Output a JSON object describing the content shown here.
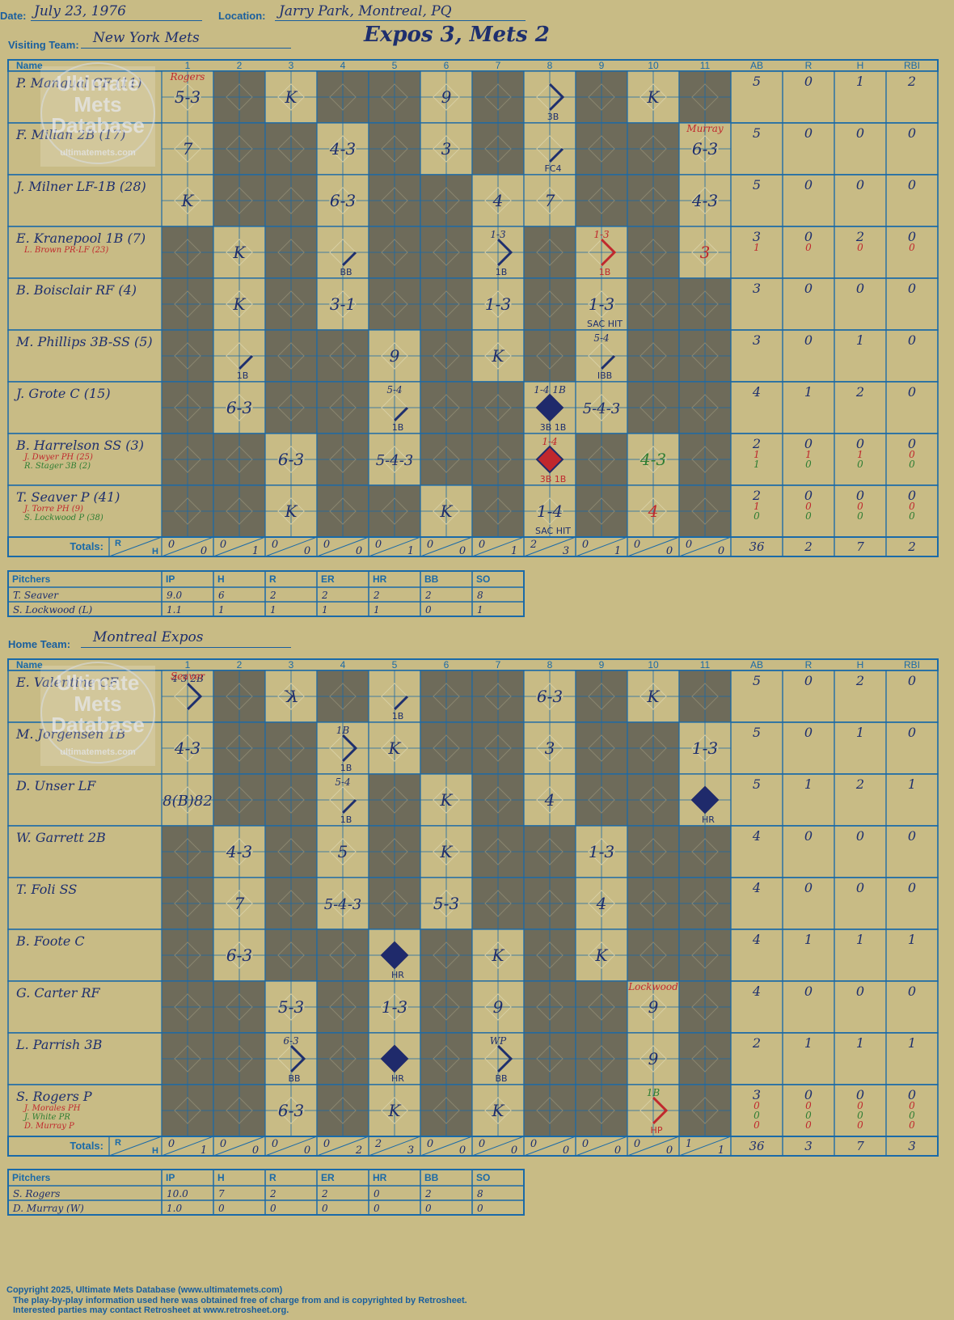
{
  "header": {
    "date_label": "Date:",
    "date": "July 23, 1976",
    "location_label": "Location:",
    "location": "Jarry Park, Montreal, PQ",
    "visiting_label": "Visiting Team:",
    "visiting_team": "New York Mets",
    "home_label": "Home Team:",
    "home_team": "Montreal Expos",
    "title": "Expos 3, Mets 2"
  },
  "watermark": [
    "Ultimate",
    "Mets",
    "Database",
    "ultimatemets.com"
  ],
  "grid_headers": {
    "name": "Name",
    "innings": [
      "1",
      "2",
      "3",
      "4",
      "5",
      "6",
      "7",
      "8",
      "9",
      "10",
      "11"
    ],
    "stats": [
      "AB",
      "R",
      "H",
      "RBI"
    ],
    "totals": "Totals:",
    "r": "R",
    "h": "H"
  },
  "pitch_headers": [
    "Pitchers",
    "IP",
    "H",
    "R",
    "ER",
    "HR",
    "BB",
    "SO"
  ],
  "visitors": {
    "players": [
      {
        "name": "P. Mangual CF (11)",
        "subs": [],
        "stats": [
          [
            "5",
            "0",
            "1",
            "2"
          ]
        ],
        "cells": {
          "1": {
            "t": "5-3",
            "top": "Rogers"
          },
          "3": {
            "t": "K"
          },
          "6": {
            "t": "9"
          },
          "8": {
            "t": "",
            "r": 3,
            "note": "3B"
          },
          "10": {
            "t": "K"
          }
        },
        "dark": [
          2,
          4,
          5,
          7,
          9,
          11
        ]
      },
      {
        "name": "F. Millan 2B (17)",
        "subs": [],
        "stats": [
          [
            "5",
            "0",
            "0",
            "0"
          ]
        ],
        "cells": {
          "1": {
            "t": "7"
          },
          "4": {
            "t": "4-3"
          },
          "6": {
            "t": "3"
          },
          "8": {
            "t": "",
            "r": 1,
            "note": "FC4"
          },
          "11": {
            "t": "6-3",
            "top": "Murray"
          }
        },
        "dark": [
          2,
          3,
          5,
          7,
          9,
          10
        ]
      },
      {
        "name": "J. Milner LF-1B (28)",
        "subs": [],
        "stats": [
          [
            "5",
            "0",
            "0",
            "0"
          ]
        ],
        "cells": {
          "1": {
            "t": "K"
          },
          "4": {
            "t": "6-3"
          },
          "7": {
            "t": "4"
          },
          "8": {
            "t": "7"
          },
          "11": {
            "t": "4-3"
          }
        },
        "dark": [
          2,
          3,
          5,
          6,
          9,
          10
        ]
      },
      {
        "name": "E. Kranepool 1B (7)",
        "subs": [
          {
            "name": "L. Brown PR-LF (23)",
            "color": "#c0282d"
          }
        ],
        "stats": [
          [
            "3",
            "0",
            "2",
            "0"
          ],
          [
            "1",
            "0",
            "0",
            "0"
          ]
        ],
        "cells": {
          "2": {
            "t": "K"
          },
          "4": {
            "t": "",
            "r": 1,
            "note": "BB"
          },
          "7": {
            "t": "",
            "r": 2,
            "note": "1B",
            "top2": "1-3"
          },
          "9": {
            "t": "",
            "r": 2,
            "note": "1B",
            "top2": "1-3",
            "red": true
          },
          "11": {
            "t": "3",
            "red": true
          }
        },
        "dark": [
          1,
          3,
          5,
          6,
          8,
          10
        ]
      },
      {
        "name": "B. Boisclair RF (4)",
        "subs": [],
        "stats": [
          [
            "3",
            "0",
            "0",
            "0"
          ]
        ],
        "cells": {
          "2": {
            "t": "K"
          },
          "4": {
            "t": "3-1"
          },
          "7": {
            "t": "1-3"
          },
          "9": {
            "t": "1-3",
            "note": "SAC HIT"
          }
        },
        "dark": [
          1,
          3,
          5,
          6,
          8,
          10,
          11
        ]
      },
      {
        "name": "M. Phillips 3B-SS (5)",
        "subs": [],
        "stats": [
          [
            "3",
            "0",
            "1",
            "0"
          ]
        ],
        "cells": {
          "2": {
            "t": "",
            "r": 1,
            "note": "1B"
          },
          "5": {
            "t": "9"
          },
          "7": {
            "t": "K"
          },
          "9": {
            "t": "",
            "r": 1,
            "note": "IBB",
            "top2": "5-4"
          }
        },
        "dark": [
          1,
          3,
          4,
          6,
          8,
          10,
          11
        ]
      },
      {
        "name": "J. Grote C (15)",
        "subs": [],
        "stats": [
          [
            "4",
            "1",
            "2",
            "0"
          ]
        ],
        "cells": {
          "2": {
            "t": "6-3"
          },
          "5": {
            "t": "",
            "r": 1,
            "note": "1B",
            "top2": "5-4"
          },
          "8": {
            "t": "",
            "r": 4,
            "note": "3B 1B",
            "top2": "1-4 1B"
          },
          "9": {
            "t": "5-4-3"
          }
        },
        "dark": [
          1,
          3,
          4,
          6,
          7,
          10,
          11
        ]
      },
      {
        "name": "B. Harrelson SS (3)",
        "subs": [
          {
            "name": "J. Dwyer PH (25)",
            "color": "#c0282d"
          },
          {
            "name": "R. Stager 3B (2)",
            "color": "#2e7d32"
          }
        ],
        "stats": [
          [
            "2",
            "0",
            "0",
            "0"
          ],
          [
            "1",
            "1",
            "1",
            "0"
          ],
          [
            "1",
            "0",
            "0",
            "0"
          ]
        ],
        "cells": {
          "3": {
            "t": "6-3"
          },
          "5": {
            "t": "5-4-3"
          },
          "8": {
            "t": "",
            "r": 4,
            "red": true,
            "note": "3B 1B",
            "top2": "1-4"
          },
          "10": {
            "t": "4-3",
            "green": true
          }
        },
        "dark": [
          1,
          2,
          4,
          6,
          7,
          9,
          11
        ]
      },
      {
        "name": "T. Seaver P (41)",
        "subs": [
          {
            "name": "J. Torre PH (9)",
            "color": "#c0282d"
          },
          {
            "name": "S. Lockwood P (38)",
            "color": "#2e7d32"
          }
        ],
        "stats": [
          [
            "2",
            "0",
            "0",
            "0"
          ],
          [
            "1",
            "0",
            "0",
            "0"
          ],
          [
            "0",
            "0",
            "0",
            "0"
          ]
        ],
        "cells": {
          "3": {
            "t": "K"
          },
          "6": {
            "t": "K"
          },
          "8": {
            "t": "1-4",
            "note": "SAC HIT"
          },
          "10": {
            "t": "4",
            "red": true
          }
        },
        "dark": [
          1,
          2,
          4,
          5,
          7,
          9,
          11
        ]
      }
    ],
    "totals": [
      [
        "0",
        "0"
      ],
      [
        "0",
        "1"
      ],
      [
        "0",
        "0"
      ],
      [
        "0",
        "0"
      ],
      [
        "0",
        "1"
      ],
      [
        "0",
        "0"
      ],
      [
        "0",
        "1"
      ],
      [
        "2",
        "3"
      ],
      [
        "0",
        "1"
      ],
      [
        "0",
        "0"
      ],
      [
        "0",
        "0"
      ]
    ],
    "totals_stats": [
      "36",
      "2",
      "7",
      "2"
    ],
    "pitchers": [
      {
        "name": "T. Seaver",
        "v": [
          "9.0",
          "6",
          "2",
          "2",
          "2",
          "2",
          "8"
        ]
      },
      {
        "name": "S. Lockwood (L)",
        "v": [
          "1.1",
          "1",
          "1",
          "1",
          "1",
          "0",
          "1"
        ]
      }
    ]
  },
  "home": {
    "players": [
      {
        "name": "E. Valentine CF",
        "subs": [],
        "stats": [
          [
            "5",
            "0",
            "2",
            "0"
          ]
        ],
        "cells": {
          "1": {
            "t": "",
            "r": 2,
            "top": "Seaver",
            "top2": "4-3 2B"
          },
          "3": {
            "t": "K",
            "rev": true
          },
          "5": {
            "t": "",
            "r": 1,
            "note": "1B"
          },
          "8": {
            "t": "6-3"
          },
          "10": {
            "t": "K"
          }
        },
        "dark": [
          2,
          4,
          6,
          7,
          9,
          11
        ]
      },
      {
        "name": "M. Jorgensen 1B",
        "subs": [],
        "stats": [
          [
            "5",
            "0",
            "1",
            "0"
          ]
        ],
        "cells": {
          "1": {
            "t": "4-3"
          },
          "4": {
            "t": "",
            "r": 2,
            "note": "1B",
            "top2": "1B"
          },
          "5": {
            "t": "K"
          },
          "8": {
            "t": "3"
          },
          "11": {
            "t": "1-3"
          }
        },
        "dark": [
          2,
          3,
          6,
          7,
          9,
          10
        ]
      },
      {
        "name": "D. Unser LF",
        "subs": [],
        "stats": [
          [
            "5",
            "1",
            "2",
            "1"
          ]
        ],
        "cells": {
          "1": {
            "t": "8(B)82"
          },
          "4": {
            "t": "",
            "r": 1,
            "note": "1B",
            "top2": "5-4"
          },
          "6": {
            "t": "K"
          },
          "8": {
            "t": "4"
          },
          "11": {
            "t": "",
            "r": 4,
            "note": "HR"
          }
        },
        "dark": [
          2,
          3,
          5,
          7,
          9,
          10
        ]
      },
      {
        "name": "W. Garrett 2B",
        "subs": [],
        "stats": [
          [
            "4",
            "0",
            "0",
            "0"
          ]
        ],
        "cells": {
          "2": {
            "t": "4-3"
          },
          "4": {
            "t": "5"
          },
          "6": {
            "t": "K"
          },
          "9": {
            "t": "1-3"
          }
        },
        "dark": [
          1,
          3,
          5,
          7,
          8,
          10,
          11
        ]
      },
      {
        "name": "T. Foli SS",
        "subs": [],
        "stats": [
          [
            "4",
            "0",
            "0",
            "0"
          ]
        ],
        "cells": {
          "2": {
            "t": "7"
          },
          "4": {
            "t": "5-4-3"
          },
          "6": {
            "t": "5-3"
          },
          "9": {
            "t": "4"
          }
        },
        "dark": [
          1,
          3,
          5,
          7,
          8,
          10,
          11
        ]
      },
      {
        "name": "B. Foote C",
        "subs": [],
        "stats": [
          [
            "4",
            "1",
            "1",
            "1"
          ]
        ],
        "cells": {
          "2": {
            "t": "6-3"
          },
          "5": {
            "t": "",
            "r": 4,
            "note": "HR"
          },
          "7": {
            "t": "K"
          },
          "9": {
            "t": "K"
          }
        },
        "dark": [
          1,
          3,
          4,
          6,
          8,
          10,
          11
        ]
      },
      {
        "name": "G. Carter RF",
        "subs": [],
        "stats": [
          [
            "4",
            "0",
            "0",
            "0"
          ]
        ],
        "cells": {
          "3": {
            "t": "5-3"
          },
          "5": {
            "t": "1-3"
          },
          "7": {
            "t": "9"
          },
          "10": {
            "t": "9",
            "top": "Lockwood"
          }
        },
        "dark": [
          1,
          2,
          4,
          6,
          8,
          9,
          11
        ]
      },
      {
        "name": "L. Parrish 3B",
        "subs": [],
        "stats": [
          [
            "2",
            "1",
            "1",
            "1"
          ]
        ],
        "cells": {
          "3": {
            "t": "",
            "r": 2,
            "note": "BB",
            "top2": "6-3"
          },
          "5": {
            "t": "",
            "r": 4,
            "note": "HR"
          },
          "7": {
            "t": "",
            "r": 2,
            "note": "BB",
            "top2": "WP"
          },
          "10": {
            "t": "9"
          }
        },
        "dark": [
          1,
          2,
          4,
          6,
          8,
          9,
          11
        ]
      },
      {
        "name": "S. Rogers P",
        "subs": [
          {
            "name": "J. Morales PH",
            "color": "#c0282d"
          },
          {
            "name": "J. White PR",
            "color": "#2e7d32"
          },
          {
            "name": "D. Murray P",
            "color": "#c0282d"
          }
        ],
        "stats": [
          [
            "3",
            "0",
            "0",
            "0"
          ],
          [
            "0",
            "0",
            "0",
            "0"
          ],
          [
            "0",
            "0",
            "0",
            "0"
          ],
          [
            "0",
            "0",
            "0",
            "0"
          ]
        ],
        "cells": {
          "3": {
            "t": "6-3"
          },
          "5": {
            "t": "K"
          },
          "7": {
            "t": "K"
          },
          "10": {
            "t": "",
            "r": 2,
            "note": "HP",
            "top2": "1B",
            "mixed": true
          }
        },
        "dark": [
          1,
          2,
          4,
          6,
          8,
          9,
          11
        ]
      }
    ],
    "totals": [
      [
        "0",
        "1"
      ],
      [
        "0",
        "0"
      ],
      [
        "0",
        "0"
      ],
      [
        "0",
        "2"
      ],
      [
        "2",
        "3"
      ],
      [
        "0",
        "0"
      ],
      [
        "0",
        "0"
      ],
      [
        "0",
        "0"
      ],
      [
        "0",
        "0"
      ],
      [
        "0",
        "0"
      ],
      [
        "1",
        "1"
      ]
    ],
    "totals_stats": [
      "36",
      "3",
      "7",
      "3"
    ],
    "pitchers": [
      {
        "name": "S. Rogers",
        "v": [
          "10.0",
          "7",
          "2",
          "2",
          "0",
          "2",
          "8"
        ]
      },
      {
        "name": "D. Murray (W)",
        "v": [
          "1.0",
          "0",
          "0",
          "0",
          "0",
          "0",
          "0"
        ]
      }
    ]
  },
  "footer": {
    "line1": "Copyright 2025, Ultimate Mets Database (www.ultimatemets.com)",
    "line2": "The play-by-play information used here was obtained free of charge from and is copyrighted by Retrosheet.",
    "line3": "Interested parties may contact Retrosheet at www.retrosheet.org."
  },
  "colors": {
    "grid": "#1a6aa8",
    "dark": "#6e6b5a",
    "paper": "#c8bb85",
    "ink": "#1e2f6e",
    "red": "#c0282d",
    "green": "#2e7d32"
  }
}
